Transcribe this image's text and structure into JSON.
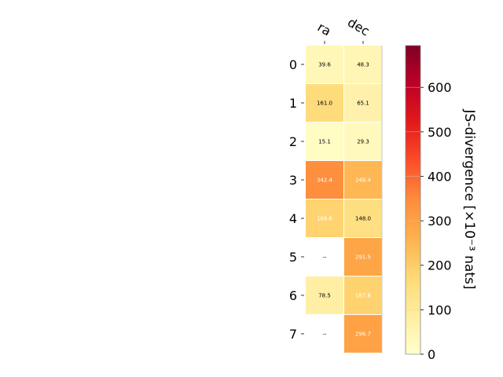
{
  "chart_data": {
    "type": "heatmap",
    "x_categories": [
      "ra",
      "dec"
    ],
    "y_categories": [
      "0",
      "1",
      "2",
      "3",
      "4",
      "5",
      "6",
      "7"
    ],
    "values": [
      [
        39.6,
        48.3
      ],
      [
        161.0,
        65.1
      ],
      [
        15.1,
        29.3
      ],
      [
        342.4,
        248.4
      ],
      [
        186.6,
        148.0
      ],
      [
        null,
        291.5
      ],
      [
        78.5,
        187.8
      ],
      [
        null,
        296.7
      ]
    ],
    "cell_labels": [
      [
        "39.6",
        "48.3"
      ],
      [
        "161.0",
        "65.1"
      ],
      [
        "15.1",
        "29.3"
      ],
      [
        "342.4",
        "248.4"
      ],
      [
        "186.6",
        "148.0"
      ],
      [
        "--",
        "291.5"
      ],
      [
        "78.5",
        "187.8"
      ],
      [
        "--",
        "296.7"
      ]
    ],
    "missing_label": "--",
    "colormap": "YlOrRd",
    "colorbar": {
      "label": "JS-divergence [×10⁻³ nats]",
      "range": [
        0,
        694
      ],
      "ticks": [
        0,
        100,
        200,
        300,
        400,
        500,
        600
      ]
    },
    "text_light_threshold": 180
  }
}
